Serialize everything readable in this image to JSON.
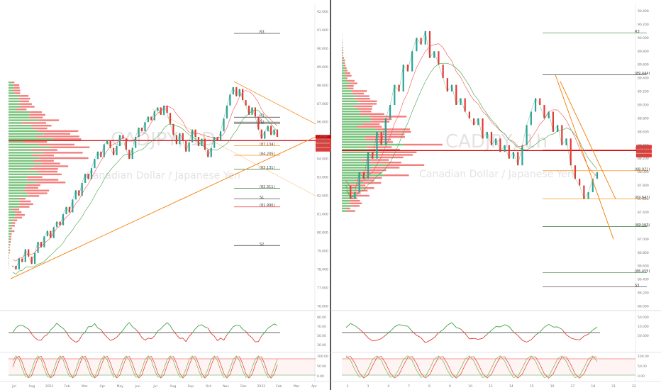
{
  "chart_data": [
    {
      "type": "line",
      "symbol": "CADJPY",
      "watermark": {
        "symbol": "CADJPY, 1D",
        "name": "Canadian Dollar / Japanese Yen"
      },
      "y_axis": {
        "labels": [
          "92.000",
          "91.000",
          "90.000",
          "89.000",
          "88.000",
          "87.000",
          "86.000",
          "85.000",
          "84.000",
          "83.000",
          "82.000",
          "81.000",
          "80.000",
          "79.000",
          "78.000",
          "77.000",
          "76.000"
        ],
        "range": [
          76.0,
          92.4
        ]
      },
      "close": [
        78.2,
        78.0,
        78.6,
        78.4,
        79.1,
        78.7,
        78.3,
        78.9,
        79.5,
        79.2,
        79.8,
        80.1,
        79.7,
        80.3,
        80.6,
        80.4,
        81.0,
        81.4,
        81.1,
        81.8,
        82.3,
        82.0,
        82.7,
        83.2,
        82.9,
        83.5,
        84.0,
        84.4,
        84.1,
        84.8,
        85.0,
        84.6,
        84.2,
        84.7,
        85.3,
        85.1,
        84.5,
        84.0,
        84.6,
        85.2,
        85.7,
        85.5,
        86.0,
        86.3,
        86.1,
        86.6,
        86.8,
        86.4,
        86.9,
        86.5,
        85.9,
        85.3,
        84.8,
        85.4,
        85.0,
        84.4,
        84.9,
        85.6,
        85.2,
        84.7,
        85.1,
        84.5,
        84.1,
        84.6,
        85.2,
        85.0,
        85.5,
        86.2,
        86.9,
        87.5,
        87.9,
        87.4,
        87.8,
        87.2,
        86.9,
        86.4,
        86.8,
        86.3,
        85.6,
        85.1,
        85.5,
        85.8,
        85.3,
        85.6,
        85.2
      ],
      "overlays": {
        "levels": [
          {
            "label": "R3",
            "value": 90.82
          },
          {
            "label": "R1",
            "value": 86.27
          },
          {
            "label": "R2",
            "value": 85.92
          },
          {
            "label": "P",
            "value": 86.0
          },
          {
            "label": "(87.134)",
            "value": 84.72
          },
          {
            "label": "(84.205)",
            "value": 84.2
          },
          {
            "label": "(83.131)",
            "value": 83.44
          },
          {
            "label": "(82.311)",
            "value": 82.41
          },
          {
            "label": "S1",
            "value": 81.83
          },
          {
            "label": "(81.990)",
            "value": 81.4
          },
          {
            "label": "S2",
            "value": 79.3
          }
        ],
        "horizontal_line": 85.0
      },
      "price_tags": [
        "CADJPY",
        "87.805",
        "87.781",
        "00:21:14"
      ],
      "rsi_labels": [
        "80.00",
        "70.00",
        "50.00",
        "30.00"
      ],
      "stoch_labels": [
        "100.00",
        "50.00",
        "0.00"
      ],
      "x_labels": [
        "Jul",
        "Aug",
        "2021",
        "Feb",
        "Mar",
        "Apr",
        "May",
        "Jun",
        "Jul",
        "Aug",
        "Sep",
        "Oct",
        "Nov",
        "Dec",
        "2022",
        "Feb",
        "Mar",
        "Apr"
      ]
    },
    {
      "type": "line",
      "symbol": "CADJPY",
      "watermark": {
        "symbol": "CADJPY, 1h",
        "name": "Canadian Dollar / Japanese Yen"
      },
      "y_axis": {
        "labels": [
          "90.400",
          "90.200",
          "90.000",
          "89.800",
          "89.600",
          "89.400",
          "89.200",
          "89.000",
          "88.800",
          "88.600",
          "88.400",
          "88.200",
          "88.000",
          "87.800",
          "87.600",
          "87.400",
          "87.200",
          "87.000",
          "86.800",
          "86.600",
          "86.400",
          "86.200",
          "86.000"
        ],
        "range": [
          86.0,
          90.5
        ]
      },
      "close": [
        87.8,
        87.6,
        87.7,
        88.0,
        87.9,
        88.3,
        88.2,
        88.6,
        88.4,
        88.8,
        89.0,
        89.3,
        89.2,
        89.6,
        89.5,
        89.8,
        90.0,
        89.9,
        90.1,
        89.7,
        89.8,
        89.6,
        89.4,
        89.2,
        89.3,
        89.0,
        89.1,
        88.9,
        88.8,
        88.7,
        88.8,
        88.5,
        88.6,
        88.4,
        88.5,
        88.3,
        88.4,
        88.2,
        88.3,
        88.1,
        88.4,
        88.7,
        88.9,
        89.1,
        89.0,
        88.8,
        88.9,
        88.6,
        88.7,
        88.4,
        88.5,
        88.1,
        87.9,
        87.8,
        87.6,
        87.7,
        87.9,
        88.0
      ],
      "overlays": {
        "levels": [
          {
            "label": "R3",
            "value": 90.07
          },
          {
            "label": "(89.444)",
            "value": 89.45
          },
          {
            "label": "(88.373)",
            "value": 88.33
          },
          {
            "label": "(88.021)",
            "value": 88.02
          },
          {
            "label": "(87.647)",
            "value": 87.6
          },
          {
            "label": "(87.157)",
            "value": 87.19
          },
          {
            "label": "(86.455)",
            "value": 86.5
          },
          {
            "label": "S3",
            "value": 86.29
          }
        ],
        "horizontal_line": 88.32
      },
      "price_tags": [
        "88.373",
        "87.778",
        "00:21"
      ],
      "rsi_labels": [
        "50.000",
        "10.000",
        "50.000"
      ],
      "stoch_labels": [
        "100.00",
        "50.00",
        "0.00"
      ],
      "x_labels": [
        "2",
        "3",
        "4",
        "7",
        "8",
        "9",
        "10",
        "11",
        "14",
        "15",
        "16",
        "17",
        "18",
        "21",
        "22"
      ]
    }
  ]
}
